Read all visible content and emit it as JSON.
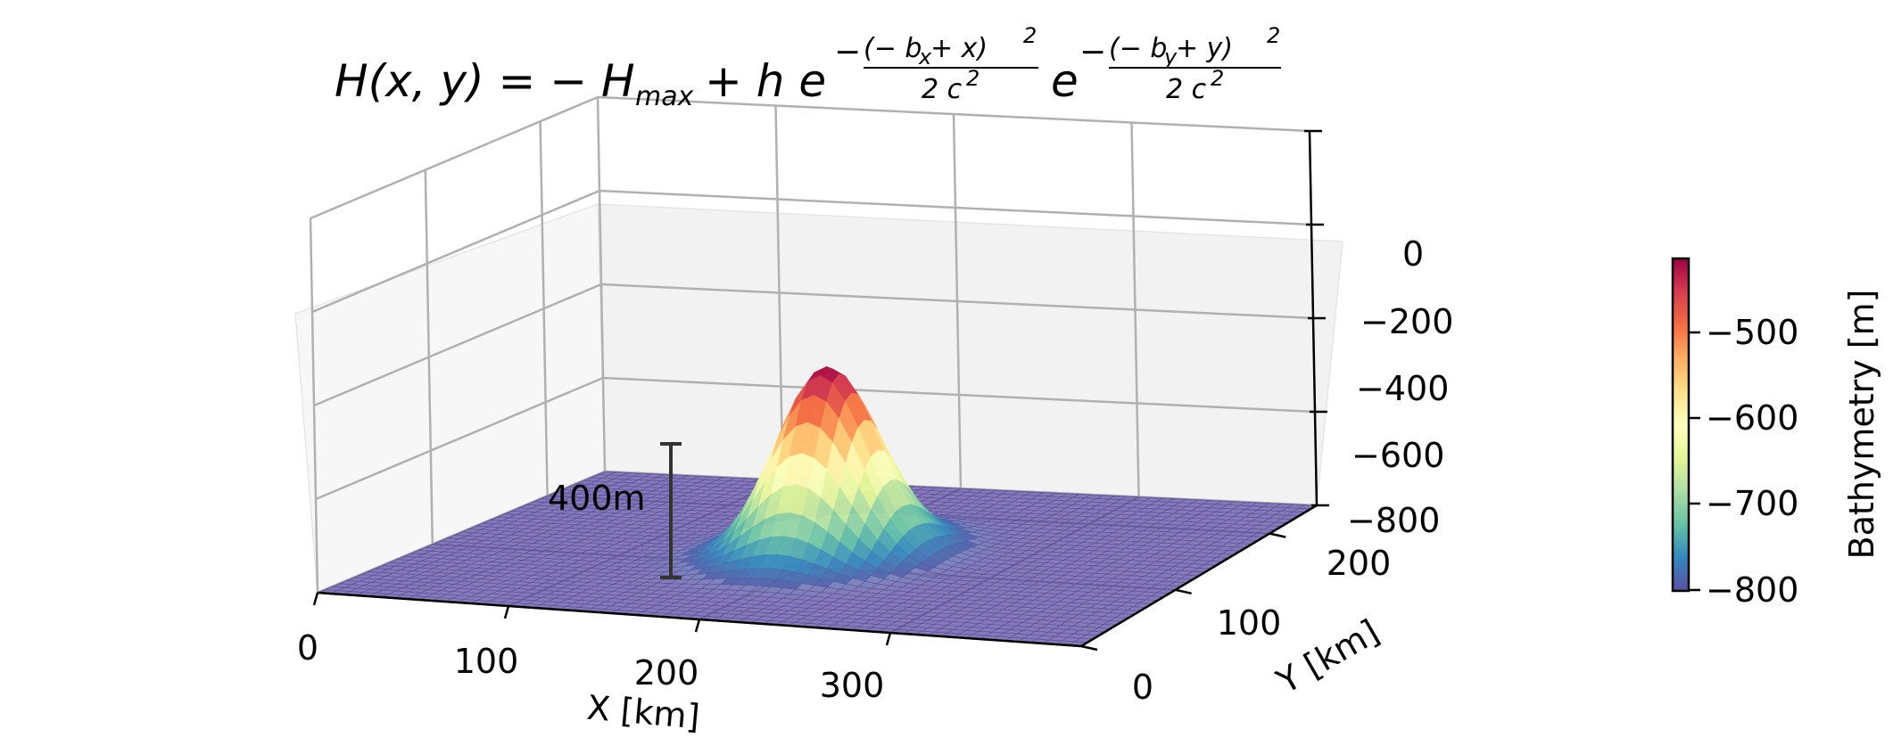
{
  "chart_data": {
    "type": "surface3d",
    "title": {
      "lhs": "H(x, y) = − H",
      "hmax_sub": "max",
      "mid": " + h e",
      "exp1_num": "(− b",
      "exp1_num_sub": "x",
      "exp1_num_end": " + x)",
      "exp2_num": "(− b",
      "exp2_num_sub": "y",
      "exp2_num_end": " + y)",
      "sq": "2",
      "den": "2 c",
      "minus": "−"
    },
    "xlabel": "X [km]",
    "ylabel": "Y [km]",
    "xlim": [
      0,
      400
    ],
    "ylim": [
      0,
      250
    ],
    "zlim": [
      -800,
      0
    ],
    "x_ticks": [
      0,
      100,
      200,
      300
    ],
    "y_ticks": [
      0,
      100,
      200
    ],
    "z_ticks": [
      0,
      -200,
      -400,
      -600,
      -800
    ],
    "x_tick_labels": [
      "0",
      "100",
      "200",
      "300"
    ],
    "y_tick_labels": [
      "0",
      "100",
      "200"
    ],
    "z_tick_labels": [
      "0",
      "−200",
      "−400",
      "−600",
      "−800"
    ],
    "surface": {
      "h_max": 800,
      "h": 400,
      "b_x": 200,
      "b_y": 125,
      "c": 25
    },
    "colormap": "Spectral_r",
    "colorbar": {
      "label": "Bathymetry [m]",
      "range": [
        -800,
        -400
      ],
      "ticks": [
        -500,
        -600,
        -700,
        -800
      ],
      "tick_labels": [
        "−500",
        "−600",
        "−700",
        "−800"
      ]
    },
    "annotation": {
      "text": "400m",
      "x": 100,
      "y": 125,
      "z_from": -800,
      "z_to": -400
    },
    "grid": true
  }
}
